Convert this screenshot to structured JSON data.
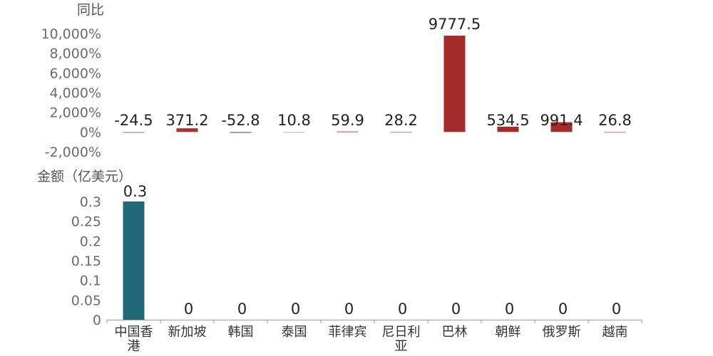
{
  "chart_data": {
    "type": "bar",
    "categories": [
      [
        "中国香",
        "港"
      ],
      [
        "新加坡"
      ],
      [
        "韩国"
      ],
      [
        "泰国"
      ],
      [
        "菲律宾"
      ],
      [
        "尼日利",
        "亚"
      ],
      [
        "巴林"
      ],
      [
        "朝鲜"
      ],
      [
        "俄罗斯"
      ],
      [
        "越南"
      ]
    ],
    "panels": [
      {
        "id": "yoy",
        "ylabel": "同比",
        "ylim": [
          -2000,
          10000
        ],
        "yticks": [
          "-2,000%",
          "0%",
          "2,000%",
          "4,000%",
          "6,000%",
          "8,000%",
          "10,000%"
        ],
        "ytick_values": [
          -2000,
          0,
          2000,
          4000,
          6000,
          8000,
          10000
        ],
        "values": [
          -24.5,
          371.2,
          -52.8,
          10.8,
          59.9,
          28.2,
          9777.5,
          534.5,
          991.4,
          26.8
        ],
        "data_labels": [
          "-24.5",
          "371.2",
          "-52.8",
          "10.8",
          "59.9",
          "28.2",
          "9777.5",
          "534.5",
          "991.4",
          "26.8"
        ],
        "bar_colors": [
          "#a9a3c2",
          "#a83232",
          "#5f8ab5",
          "#c9c9d6",
          "#d98080",
          "#b2a6c8",
          "#a52a2a",
          "#a52a2a",
          "#a52a2a",
          "#e6a0a0"
        ]
      },
      {
        "id": "amount",
        "ylabel": "金额（亿美元）",
        "ylim": [
          0,
          0.3
        ],
        "yticks": [
          "0",
          "0.05",
          "0.1",
          "0.15",
          "0.2",
          "0.25",
          "0.3"
        ],
        "ytick_values": [
          0,
          0.05,
          0.1,
          0.15,
          0.2,
          0.25,
          0.3
        ],
        "values": [
          0.3,
          0,
          0,
          0,
          0,
          0,
          0,
          0,
          0,
          0
        ],
        "data_labels": [
          "0.3",
          "0",
          "0",
          "0",
          "0",
          "0",
          "0",
          "0",
          "0",
          "0"
        ],
        "bar_color": "#236a78"
      }
    ],
    "grid": false,
    "legend": "none"
  }
}
